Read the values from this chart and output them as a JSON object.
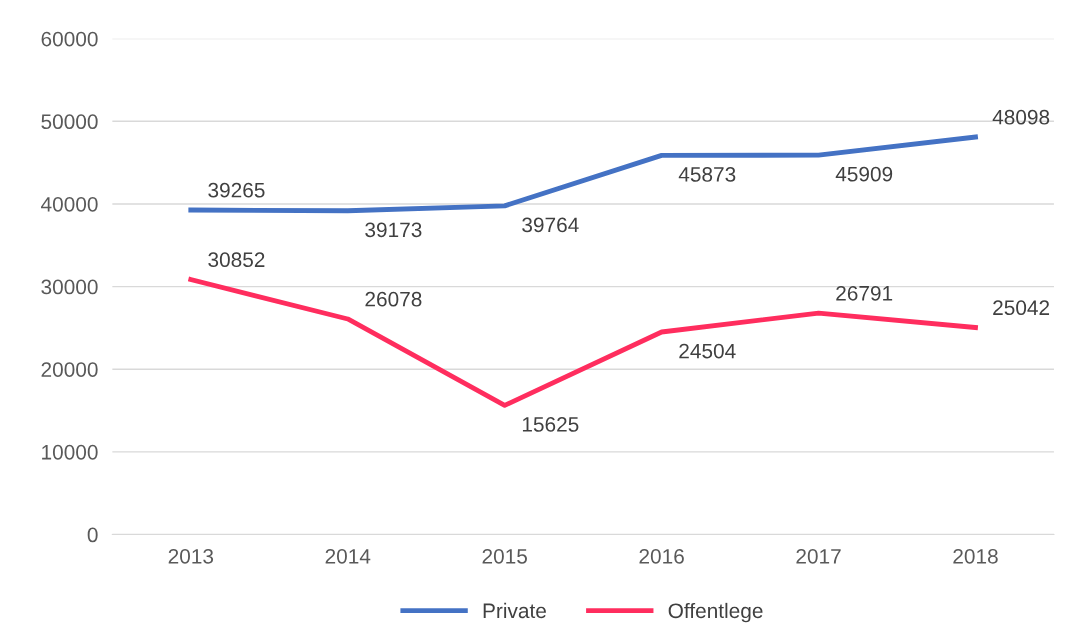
{
  "chart_data": {
    "type": "line",
    "categories": [
      "2013",
      "2014",
      "2015",
      "2016",
      "2017",
      "2018"
    ],
    "series": [
      {
        "name": "Private",
        "color": "#4472c4",
        "values": [
          39265,
          39173,
          39764,
          45873,
          45909,
          48098
        ]
      },
      {
        "name": "Offentlege",
        "color": "#ff2d5e",
        "values": [
          30852,
          26078,
          15625,
          24504,
          26791,
          25042
        ]
      }
    ],
    "ylim": [
      0,
      60000
    ],
    "yticks": [
      0,
      10000,
      20000,
      30000,
      40000,
      50000,
      60000
    ],
    "grid": "y",
    "legend": "bottom",
    "data_labels": true,
    "marker": "none",
    "line_style": "solid"
  }
}
